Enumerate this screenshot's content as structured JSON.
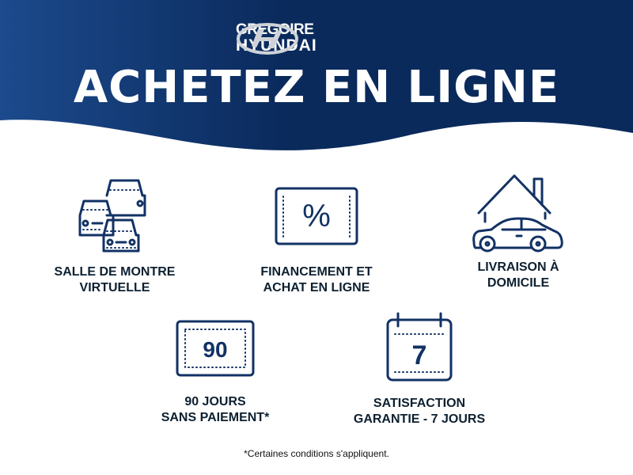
{
  "colors": {
    "navy": "#0a2a5c",
    "navy_light": "#1c4a8c",
    "icon": "#123264"
  },
  "logo": {
    "line1": "GREGOIRE",
    "line2": "HYUNDAI",
    "icon": "hyundai-logo"
  },
  "title": "ACHETEZ EN LIGNE",
  "features": [
    {
      "icon": "cars-icon",
      "line1": "SALLE DE MONTRE",
      "line2": "VIRTUELLE"
    },
    {
      "icon": "percent-ticket-icon",
      "symbol": "%",
      "line1": "FINANCEMENT ET",
      "line2": "ACHAT EN LIGNE"
    },
    {
      "icon": "house-car-icon",
      "line1": "LIVRAISON À",
      "line2": "DOMICILE"
    },
    {
      "icon": "ticket-90-icon",
      "symbol": "90",
      "line1": "90 JOURS",
      "line2": "SANS PAIEMENT*"
    },
    {
      "icon": "calendar-icon",
      "symbol": "7",
      "line1": "SATISFACTION",
      "line2": "GARANTIE - 7 JOURS"
    }
  ],
  "note": "*Certaines conditions s'appliquent."
}
